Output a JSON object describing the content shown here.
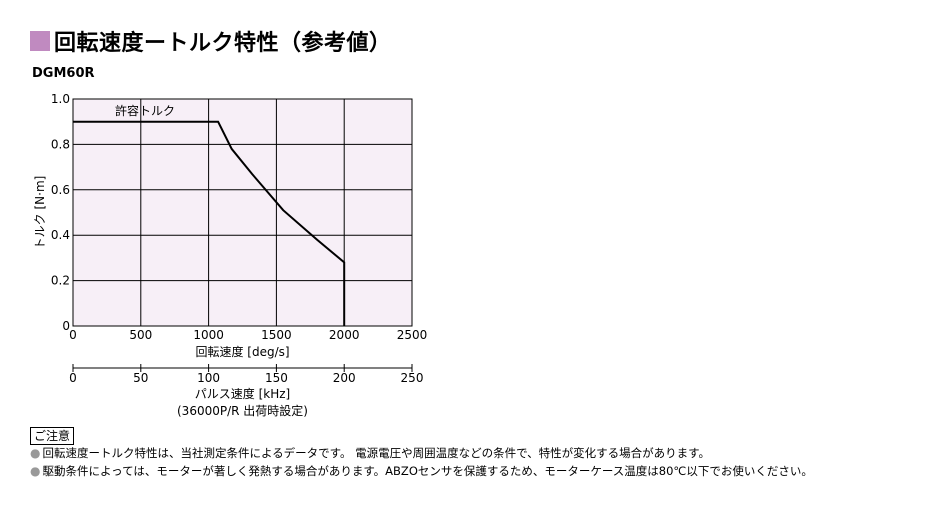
{
  "heading": {
    "title": "回転速度ートルク特性（参考値）",
    "accent": "#c08ac0"
  },
  "model": "DGM60R",
  "chart_data": {
    "type": "line",
    "ylabel": "トルク [N·m]",
    "xlabel": "回転速度 [deg/s]",
    "xlim": [
      0,
      2500
    ],
    "ylim": [
      0,
      1.0
    ],
    "x_ticks": [
      "0",
      "500",
      "1000",
      "1500",
      "2000",
      "2500"
    ],
    "y_ticks": [
      "0",
      "0.2",
      "0.4",
      "0.6",
      "0.8",
      "1.0"
    ],
    "secondary_axis": {
      "label": "パルス速度 [kHz]",
      "note": "(36000P/R 出荷時設定)",
      "ticks": [
        "0",
        "50",
        "100",
        "150",
        "200",
        "250"
      ]
    },
    "annotation": "許容トルク",
    "grid": true,
    "plot_bg": "#f7eff7",
    "series": [
      {
        "x": [
          0,
          1070,
          1170,
          1320,
          1550,
          1800,
          2000,
          2000
        ],
        "y": [
          0.9,
          0.9,
          0.78,
          0.67,
          0.51,
          0.38,
          0.28,
          0.0
        ]
      }
    ]
  },
  "notice": {
    "label": "ご注意",
    "items": [
      "回転速度ートルク特性は、当社測定条件によるデータです。 電源電圧や周囲温度などの条件で、特性が変化する場合があります。",
      "駆動条件によっては、モーターが著しく発熱する場合があります。ABZOセンサを保護するため、モーターケース温度は80℃以下でお使いください。"
    ]
  }
}
